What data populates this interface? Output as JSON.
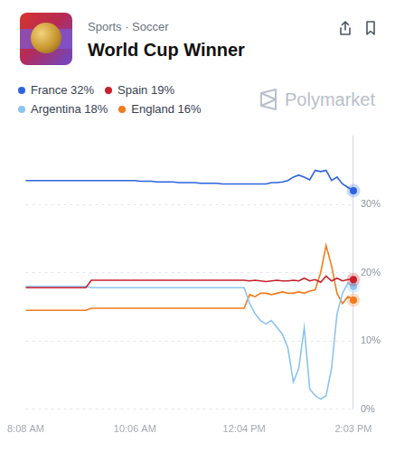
{
  "chart_data": {
    "type": "line",
    "title": "World Cup Winner",
    "subtitle": "Sports · Soccer",
    "annotations": [
      "Polymarket"
    ],
    "categories": [
      "8:08 AM",
      null,
      null,
      null,
      null,
      null,
      null,
      null,
      null,
      null,
      null,
      null,
      null,
      null,
      null,
      null,
      null,
      null,
      null,
      null,
      "10:06 AM",
      null,
      null,
      null,
      null,
      null,
      null,
      null,
      null,
      null,
      null,
      null,
      null,
      null,
      null,
      null,
      null,
      null,
      null,
      null,
      "12:04 PM",
      null,
      null,
      null,
      null,
      null,
      null,
      null,
      null,
      null,
      null,
      null,
      null,
      null,
      null,
      null,
      null,
      null,
      null,
      null,
      "2:03 PM"
    ],
    "series": [
      {
        "name": "France 32%",
        "color": "#2d63e0",
        "values": [
          33.5,
          33.5,
          33.5,
          33.5,
          33.5,
          33.5,
          33.5,
          33.5,
          33.5,
          33.5,
          33.5,
          33.5,
          33.5,
          33.5,
          33.5,
          33.5,
          33.5,
          33.5,
          33.5,
          33.5,
          33.5,
          33.4,
          33.4,
          33.4,
          33.3,
          33.3,
          33.3,
          33.3,
          33.2,
          33.2,
          33.2,
          33.2,
          33.1,
          33.1,
          33.1,
          33.1,
          33,
          33,
          33,
          33,
          33,
          33,
          33,
          33,
          33,
          33.2,
          33.2,
          33.3,
          33.5,
          34,
          34.3,
          34,
          33.6,
          35,
          34.8,
          35,
          33.5,
          34,
          33,
          32.5,
          32
        ]
      },
      {
        "name": "Spain 19%",
        "color": "#c8212c",
        "values": [
          17.8,
          17.8,
          17.8,
          17.8,
          17.8,
          17.8,
          17.8,
          17.8,
          17.8,
          17.8,
          17.8,
          17.8,
          18.9,
          18.9,
          18.9,
          18.9,
          18.9,
          18.9,
          18.9,
          18.9,
          18.9,
          18.9,
          18.9,
          18.9,
          18.9,
          18.9,
          18.9,
          18.9,
          18.9,
          18.9,
          18.9,
          18.9,
          18.9,
          18.9,
          18.9,
          18.9,
          18.9,
          18.9,
          18.9,
          18.9,
          18.9,
          18.8,
          18.9,
          18.8,
          18.7,
          18.8,
          18.9,
          18.8,
          18.8,
          18.9,
          18.8,
          19.2,
          18.8,
          19,
          18.6,
          19.5,
          18.8,
          19.2,
          18.8,
          19,
          19
        ]
      },
      {
        "name": "Argentina 18%",
        "color": "#8cc4f0",
        "values": [
          18,
          18,
          18,
          18,
          18,
          18,
          18,
          18,
          18,
          18,
          18,
          18,
          17.8,
          17.8,
          17.8,
          17.8,
          17.8,
          17.8,
          17.8,
          17.8,
          17.8,
          17.8,
          17.8,
          17.8,
          17.8,
          17.8,
          17.8,
          17.8,
          17.8,
          17.8,
          17.8,
          17.8,
          17.8,
          17.8,
          17.8,
          17.8,
          17.8,
          17.8,
          17.8,
          17.8,
          17.8,
          15.5,
          14,
          13,
          12.5,
          13,
          12,
          11,
          9,
          4,
          6,
          12,
          3,
          2,
          1.5,
          2,
          6,
          14,
          17,
          18.5,
          18
        ]
      },
      {
        "name": "England 16%",
        "color": "#f07c1e",
        "values": [
          14.5,
          14.5,
          14.5,
          14.5,
          14.5,
          14.5,
          14.5,
          14.5,
          14.5,
          14.5,
          14.5,
          14.5,
          14.8,
          14.8,
          14.8,
          14.8,
          14.8,
          14.8,
          14.8,
          14.8,
          14.8,
          14.8,
          14.8,
          14.8,
          14.8,
          14.8,
          14.8,
          14.8,
          14.8,
          14.8,
          14.8,
          14.8,
          14.8,
          14.8,
          14.8,
          14.8,
          14.8,
          14.8,
          14.8,
          14.8,
          14.8,
          16.8,
          16.5,
          17,
          17,
          16.8,
          17,
          17.2,
          17,
          17,
          17.2,
          17,
          17.3,
          17.5,
          20,
          24,
          21,
          17,
          15.5,
          16.5,
          16
        ]
      }
    ],
    "ylim": [
      0,
      40
    ],
    "yticks": [
      {
        "value": 0,
        "label": "0%"
      },
      {
        "value": 10,
        "label": "10%"
      },
      {
        "value": 20,
        "label": "20%"
      },
      {
        "value": 30,
        "label": "30%"
      }
    ],
    "grid": true,
    "legend": "top",
    "marker": "last",
    "line_style": "solid"
  }
}
